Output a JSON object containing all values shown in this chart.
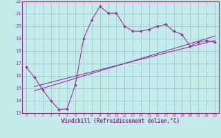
{
  "xlabel": "Windchill (Refroidissement éolien,°C)",
  "bg_color": "#c5eaea",
  "line_color": "#993399",
  "grid_color": "#99cccc",
  "xlim": [
    -0.5,
    23.5
  ],
  "ylim": [
    13,
    22
  ],
  "xticks": [
    0,
    1,
    2,
    3,
    4,
    5,
    6,
    7,
    8,
    9,
    10,
    11,
    12,
    13,
    14,
    15,
    16,
    17,
    18,
    19,
    20,
    21,
    22,
    23
  ],
  "yticks": [
    13,
    14,
    15,
    16,
    17,
    18,
    19,
    20,
    21,
    22
  ],
  "main_x": [
    0,
    1,
    2,
    3,
    4,
    5,
    6,
    7,
    8,
    9,
    10,
    11,
    12,
    13,
    14,
    15,
    16,
    17,
    18,
    19,
    20,
    21,
    22,
    23
  ],
  "main_y": [
    16.7,
    15.9,
    14.9,
    14.0,
    13.3,
    13.35,
    15.3,
    19.0,
    20.5,
    21.6,
    21.05,
    21.05,
    20.0,
    19.6,
    19.6,
    19.75,
    20.0,
    20.15,
    19.6,
    19.35,
    18.4,
    18.7,
    18.85,
    18.7
  ],
  "trend1_x": [
    1,
    23
  ],
  "trend1_y": [
    14.8,
    19.2
  ],
  "trend2_x": [
    1,
    23
  ],
  "trend2_y": [
    15.15,
    18.85
  ],
  "trend3_x": [
    1,
    23
  ],
  "trend3_y": [
    14.5,
    19.0
  ]
}
